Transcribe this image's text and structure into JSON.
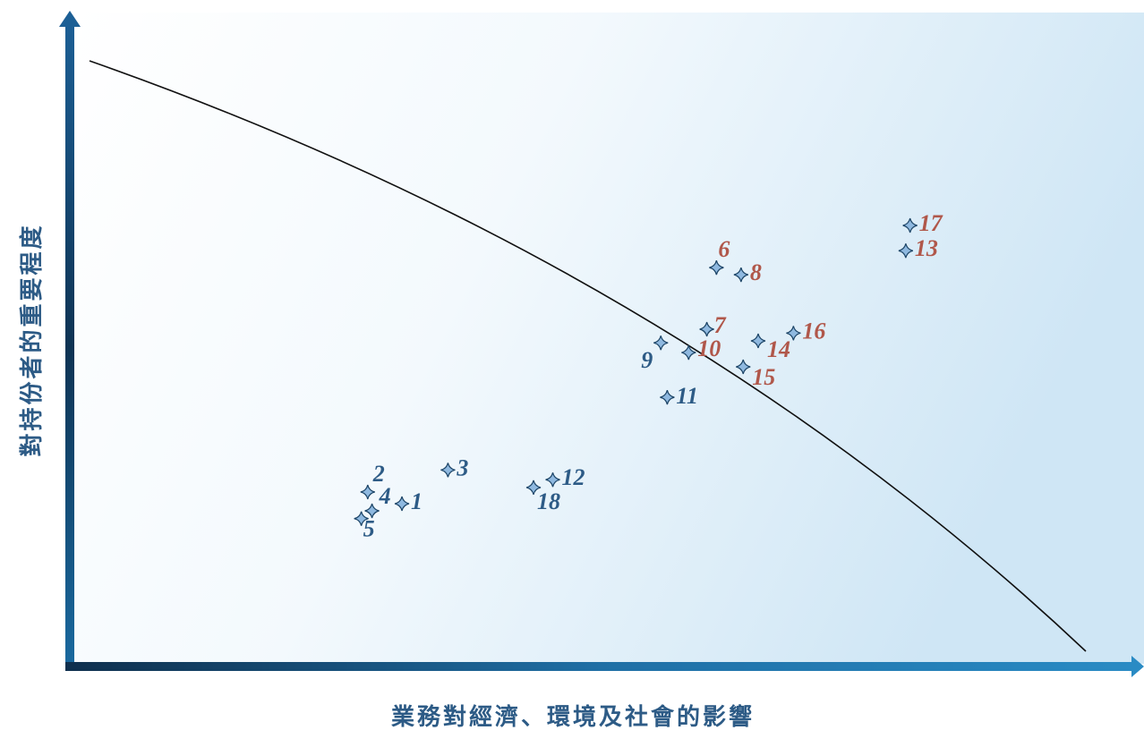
{
  "chart_data": {
    "type": "scatter",
    "x_label": "業務對經濟、環境及社會的影響",
    "y_label": "對持份者的重要程度",
    "xlim": [
      0,
      100
    ],
    "ylim": [
      0,
      100
    ],
    "labels": [
      "1",
      "2",
      "3",
      "4",
      "5",
      "6",
      "7",
      "8",
      "9",
      "10",
      "11",
      "12",
      "13",
      "14",
      "15",
      "16",
      "17",
      "18"
    ],
    "x": [
      31.3,
      28.1,
      35.6,
      28.5,
      27.5,
      60.7,
      59.8,
      63.0,
      55.5,
      58.1,
      56.1,
      45.4,
      78.4,
      64.6,
      63.2,
      67.9,
      78.8,
      43.6
    ],
    "y": [
      25.1,
      26.9,
      30.3,
      24.0,
      22.8,
      61.5,
      52.0,
      60.4,
      49.9,
      48.4,
      41.5,
      28.8,
      64.1,
      50.2,
      46.2,
      51.4,
      68.0,
      27.6
    ],
    "label_colors": [
      "#2d5b86",
      "#2d5b86",
      "#2d5b86",
      "#2d5b86",
      "#2d5b86",
      "#b0574a",
      "#b0574a",
      "#b0574a",
      "#2d5b86",
      "#b0574a",
      "#2d5b86",
      "#2d5b86",
      "#b0574a",
      "#b0574a",
      "#b0574a",
      "#b0574a",
      "#b0574a",
      "#2d5b86"
    ],
    "marker_color": "#8fb9e0"
  }
}
